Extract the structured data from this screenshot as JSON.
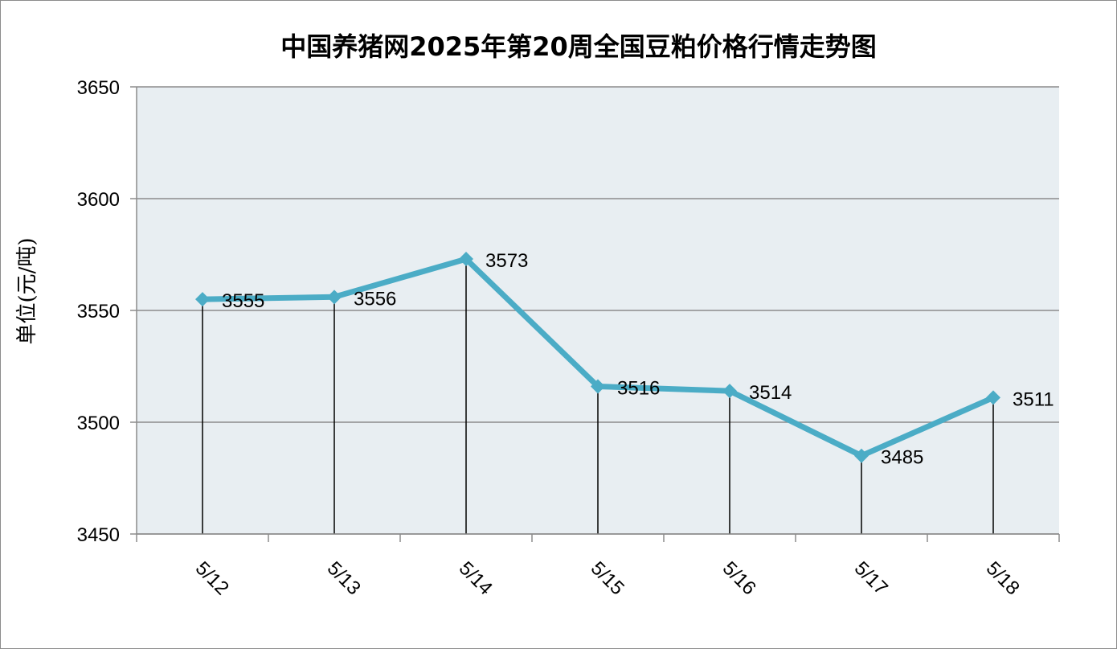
{
  "chart_data": {
    "type": "line",
    "title": "中国养猪网2025年第20周全国豆粕价格行情走势图",
    "xlabel": "",
    "ylabel": "单位(元/吨)",
    "categories": [
      "5/12",
      "5/13",
      "5/14",
      "5/15",
      "5/16",
      "5/17",
      "5/18"
    ],
    "series": [
      {
        "values": [
          3555,
          3556,
          3573,
          3516,
          3514,
          3485,
          3511
        ]
      }
    ],
    "data_labels": [
      "3555",
      "3556",
      "3573",
      "3516",
      "3514",
      "3485",
      "3511"
    ],
    "ylim": [
      3450,
      3650
    ],
    "yticks": [
      "3650",
      "3600",
      "3550",
      "3500",
      "3450"
    ],
    "ytick_values": [
      3650,
      3600,
      3550,
      3500,
      3450
    ],
    "grid": true,
    "drop_lines": true,
    "marker": "diamond",
    "colors": {
      "line": "#4bacc6",
      "plot_background": "#e8eef2",
      "gridline": "#8c8c8c",
      "drop_line": "#000000"
    }
  }
}
